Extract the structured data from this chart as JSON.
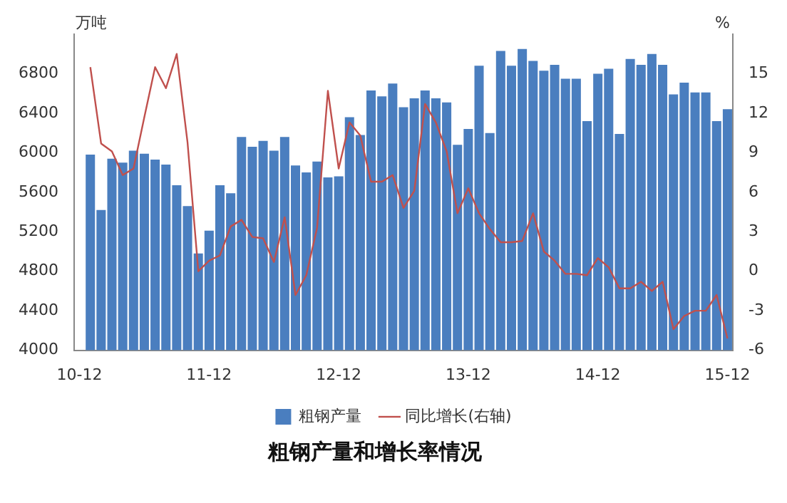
{
  "chart_data": {
    "type": "bar",
    "title": "粗钢产量和增长率情况",
    "ylabel": "万吨",
    "y2label": "%",
    "categories": [
      "10-12",
      null,
      null,
      null,
      null,
      null,
      null,
      null,
      null,
      null,
      null,
      null,
      "11-12",
      null,
      null,
      null,
      null,
      null,
      null,
      null,
      null,
      null,
      null,
      null,
      "12-12",
      null,
      null,
      null,
      null,
      null,
      null,
      null,
      null,
      null,
      null,
      null,
      "13-12",
      null,
      null,
      null,
      null,
      null,
      null,
      null,
      null,
      null,
      null,
      null,
      "14-12",
      null,
      null,
      null,
      null,
      null,
      null,
      null,
      null,
      null,
      null,
      null,
      "15-12"
    ],
    "series": [
      {
        "name": "粗钢产量",
        "color": "#4a7ebf",
        "values": [
          null,
          5980,
          5420,
          5940,
          5900,
          6020,
          5990,
          5930,
          5880,
          5670,
          5460,
          4980,
          5210,
          5670,
          5590,
          6160,
          6060,
          6120,
          6020,
          6160,
          5870,
          5800,
          5910,
          5750,
          5760,
          6360,
          6180,
          6630,
          6570,
          6700,
          6460,
          6550,
          6630,
          6550,
          6510,
          6080,
          6240,
          6880,
          6200,
          7030,
          6880,
          7050,
          6930,
          6830,
          6890,
          6750,
          6750,
          6320,
          6800,
          6850,
          6190,
          6950,
          6890,
          7000,
          6890,
          6590,
          6710,
          6610,
          6610,
          6320,
          6440
        ]
      },
      {
        "name": "同比增长(右轴)",
        "type": "line",
        "axis": "y2",
        "color": "#c0504d",
        "values": [
          null,
          15.5,
          9.7,
          9.1,
          7.3,
          7.8,
          11.7,
          15.5,
          13.9,
          16.5,
          9.8,
          0,
          0.8,
          1.2,
          3.4,
          3.9,
          2.6,
          2.5,
          0.7,
          4.1,
          -1.8,
          -0.3,
          3.3,
          13.7,
          7.8,
          11.3,
          10.3,
          6.8,
          6.8,
          7.3,
          4.8,
          6.1,
          12.7,
          11.3,
          9.1,
          4.4,
          6.3,
          4.4,
          3.2,
          2.2,
          2.2,
          2.3,
          4.4,
          1.5,
          0.8,
          -0.2,
          -0.2,
          -0.3,
          1.0,
          0.3,
          -1.3,
          -1.3,
          -0.8,
          -1.5,
          -0.8,
          -4.4,
          -3.4,
          -3.0,
          -3.0,
          -1.8,
          -5.1
        ]
      }
    ],
    "ylim": [
      4000,
      7200
    ],
    "yticks": [
      4000,
      4400,
      4800,
      5200,
      5600,
      6000,
      6400,
      6800
    ],
    "y2lim": [
      -6,
      18
    ],
    "y2ticks": [
      -6,
      -3,
      0,
      3,
      6,
      9,
      12,
      15
    ],
    "grid": false,
    "legend": "bottom",
    "marker": "none"
  }
}
